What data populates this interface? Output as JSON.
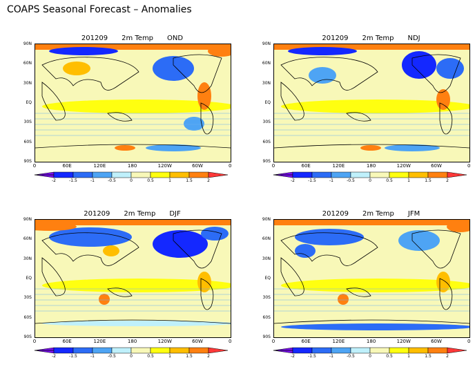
{
  "title": "COAPS Seasonal Forecast – Anomalies",
  "panels": [
    {
      "date": "201209",
      "variable": "2m Temp",
      "season": "OND"
    },
    {
      "date": "201209",
      "variable": "2m Temp",
      "season": "NDJ"
    },
    {
      "date": "201209",
      "variable": "2m Temp",
      "season": "DJF"
    },
    {
      "date": "201209",
      "variable": "2m Temp",
      "season": "JFM"
    }
  ],
  "y_ticks": [
    "90N",
    "60N",
    "30N",
    "EQ",
    "30S",
    "60S",
    "90S"
  ],
  "x_ticks": [
    "0",
    "60E",
    "120E",
    "180",
    "120W",
    "60W",
    "0"
  ],
  "colorbar": {
    "labels": [
      "-2",
      "-1.5",
      "-1",
      "-0.5",
      "0",
      "0.5",
      "1",
      "1.5",
      "2"
    ],
    "colors": [
      "#7a10f0",
      "#1428ff",
      "#2c6cf6",
      "#4ea4f4",
      "#bff0fb",
      "#f8f8b8",
      "#ffff10",
      "#ffbe00",
      "#ff8010",
      "#ff3838"
    ]
  }
}
